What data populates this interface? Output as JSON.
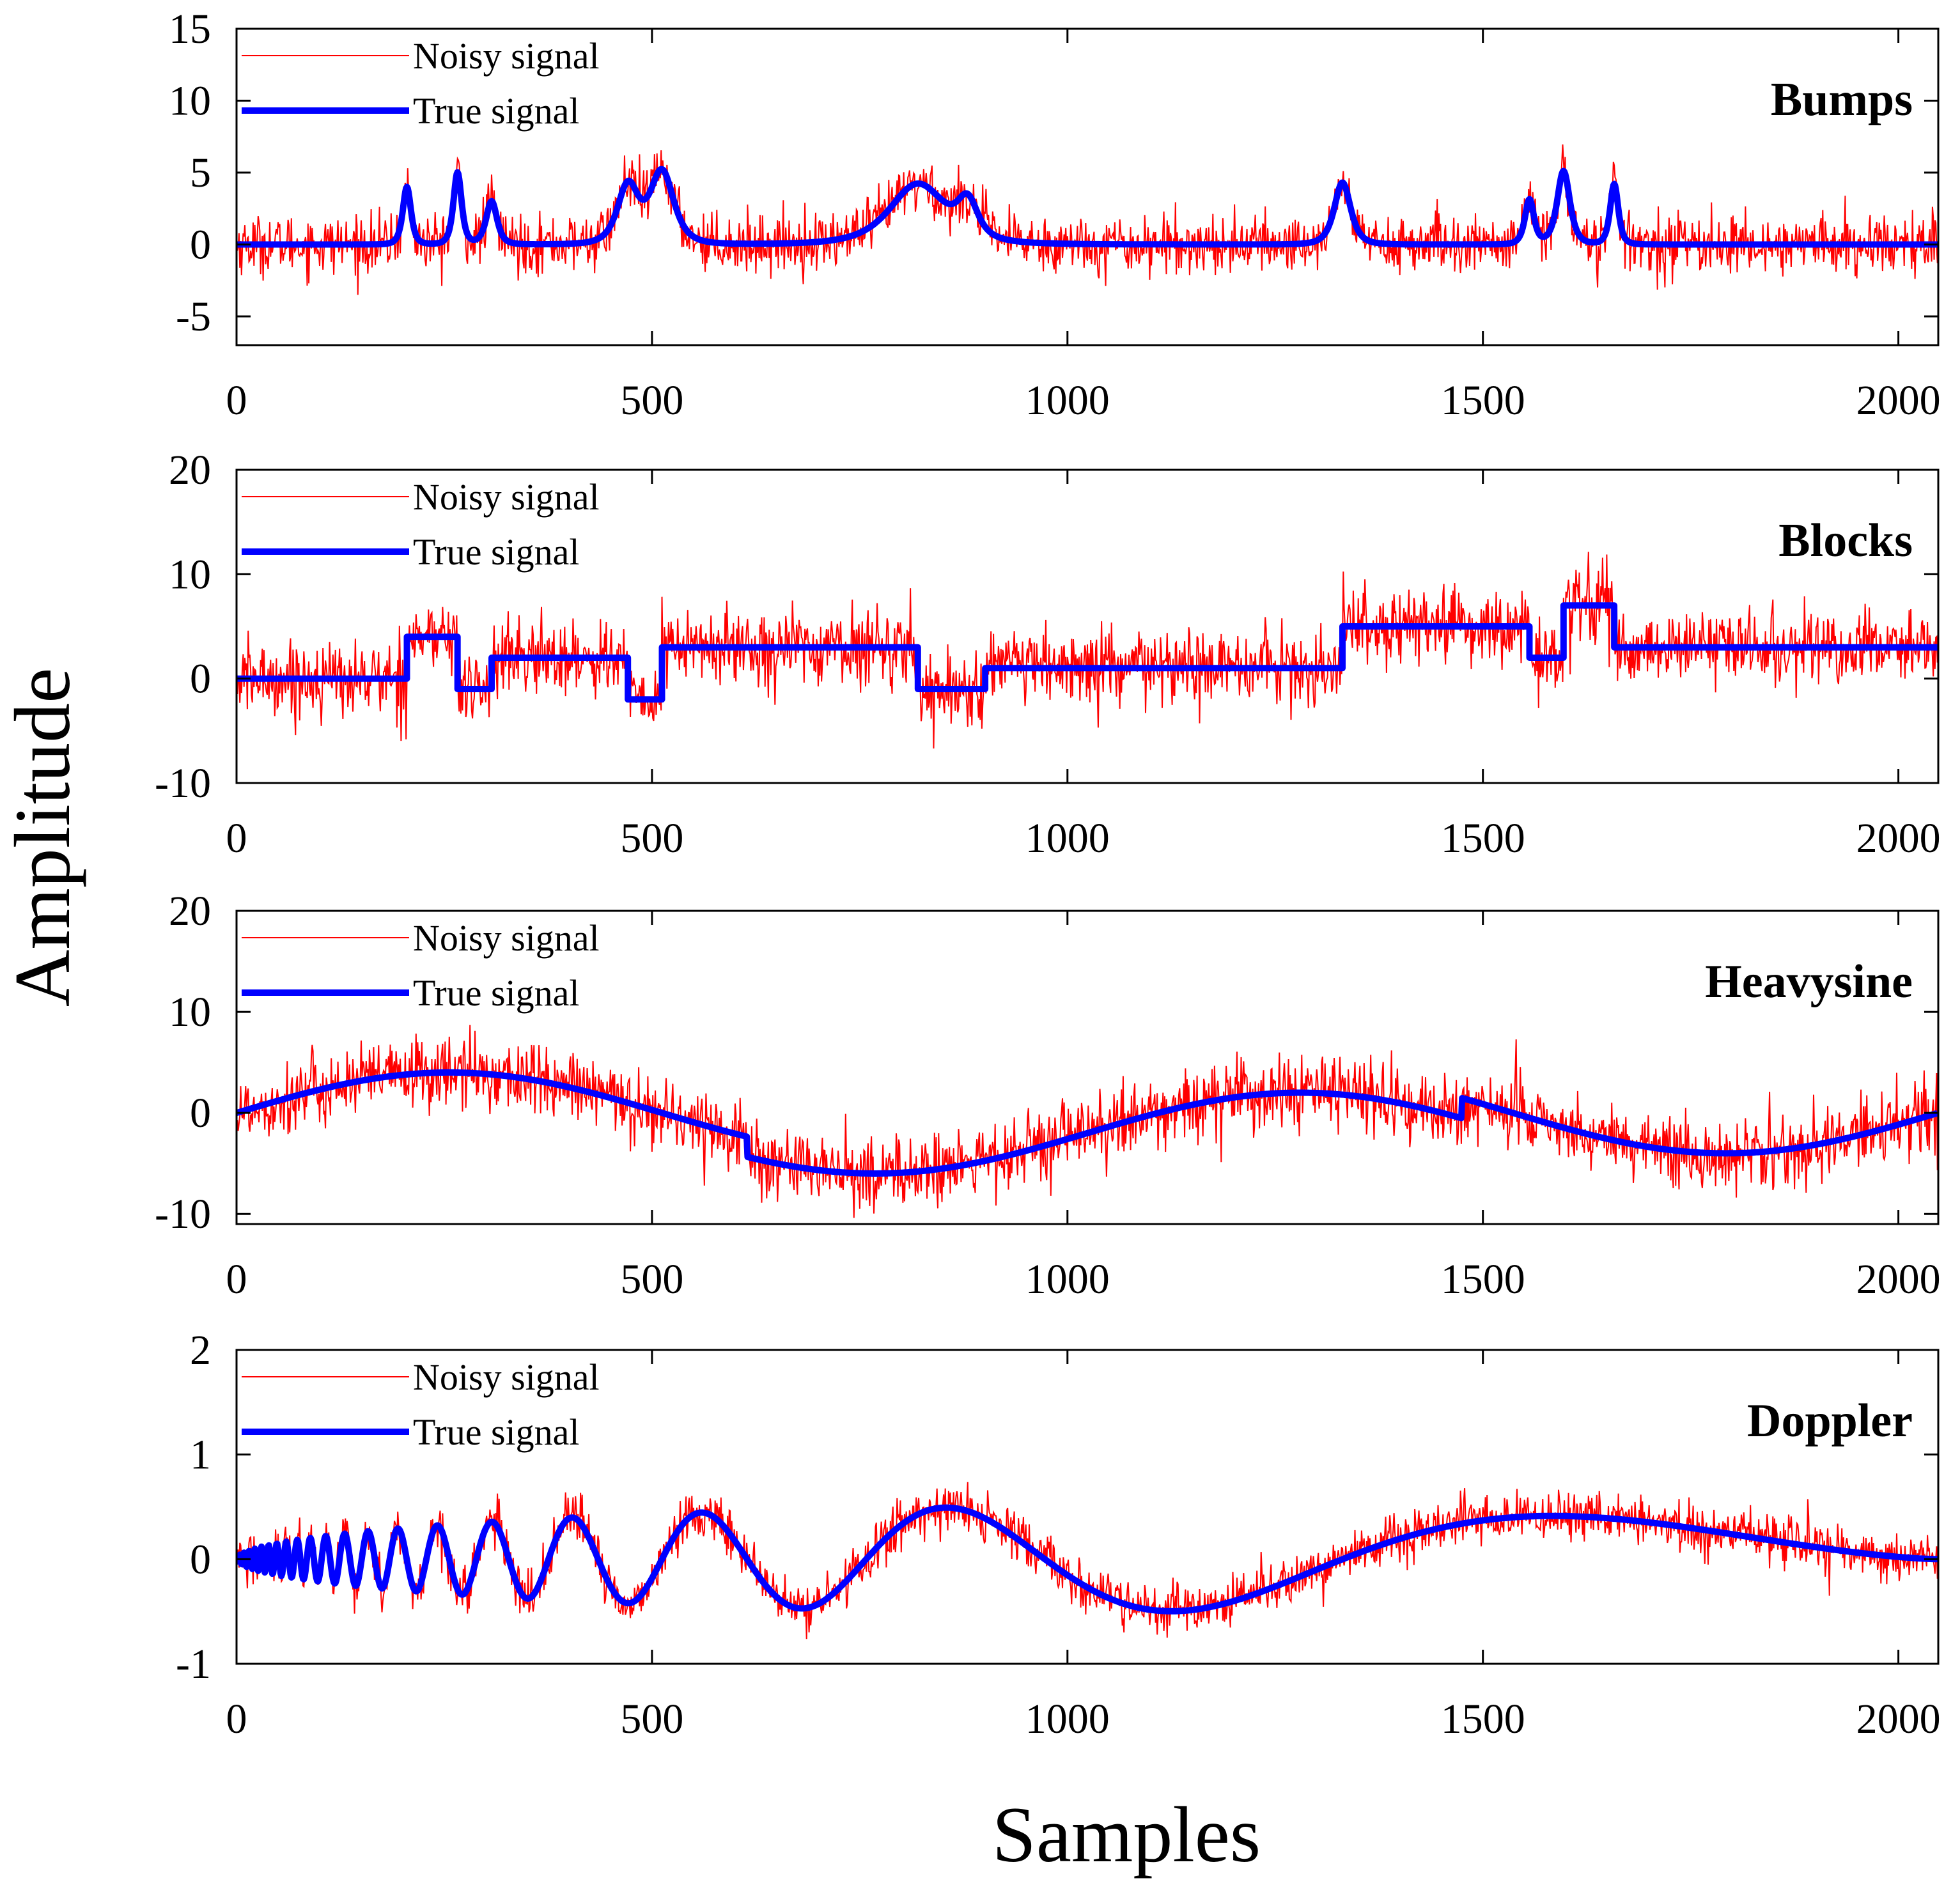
{
  "figure": {
    "ylabel": "Amplitude",
    "xlabel": "Samples"
  },
  "chart_data": [
    {
      "type": "line",
      "title": "Bumps",
      "xlim": [
        0,
        2048
      ],
      "ylim": [
        -7,
        15
      ],
      "xticks": [
        0,
        500,
        1000,
        1500,
        2000
      ],
      "xtick_labels": [
        "0",
        "500",
        "1000",
        "1500",
        "2000"
      ],
      "yticks": [
        15,
        10,
        5,
        0,
        -5
      ],
      "ytick_labels": [
        "15",
        "10",
        "5",
        "0",
        "-5"
      ],
      "legend": [
        "Noisy signal",
        "True signal"
      ],
      "legend_position": "top-left",
      "noise_std": 1.0,
      "series": [
        {
          "name": "Noisy signal",
          "color": "#ff0000",
          "values": "true signal plus Gaussian noise (sd 1.0), 2048 samples"
        },
        {
          "name": "True signal",
          "color": "#0000ff",
          "bumps": [
            {
              "center": 205,
              "height": 4.0,
              "width": 9
            },
            {
              "center": 266,
              "height": 5.0,
              "width": 9
            },
            {
              "center": 307,
              "height": 3.0,
              "width": 12
            },
            {
              "center": 471,
              "height": 4.0,
              "width": 23
            },
            {
              "center": 512,
              "height": 5.0,
              "width": 26
            },
            {
              "center": 820,
              "height": 4.2,
              "width": 62
            },
            {
              "center": 880,
              "height": 2.4,
              "width": 22
            },
            {
              "center": 1331,
              "height": 4.3,
              "width": 18
            },
            {
              "center": 1556,
              "height": 3.1,
              "width": 10
            },
            {
              "center": 1597,
              "height": 5.1,
              "width": 14
            },
            {
              "center": 1658,
              "height": 4.2,
              "width": 9
            }
          ]
        }
      ]
    },
    {
      "type": "line",
      "title": "Blocks",
      "xlim": [
        0,
        2048
      ],
      "ylim": [
        -10,
        20
      ],
      "xticks": [
        0,
        500,
        1000,
        1500,
        2000
      ],
      "xtick_labels": [
        "0",
        "500",
        "1000",
        "1500",
        "2000"
      ],
      "yticks": [
        20,
        10,
        0,
        -10
      ],
      "ytick_labels": [
        "20",
        "10",
        "0",
        "-10"
      ],
      "legend": [
        "Noisy signal",
        "True signal"
      ],
      "legend_position": "top-left",
      "noise_std": 1.8,
      "series": [
        {
          "name": "Noisy signal",
          "color": "#ff0000",
          "values": "true signal plus Gaussian noise (sd 1.8), 2048 samples"
        },
        {
          "name": "True signal",
          "color": "#0000ff",
          "steps_x": [
            0,
            205,
            266,
            307,
            471,
            512,
            820,
            901,
            1331,
            1556,
            1597,
            1658,
            2048
          ],
          "steps_y": [
            0,
            4,
            -1,
            2,
            -2,
            3,
            -1,
            1,
            5,
            2,
            7,
            3
          ]
        }
      ]
    },
    {
      "type": "line",
      "title": "Heavysine",
      "xlim": [
        0,
        2048
      ],
      "ylim": [
        -11,
        20
      ],
      "xticks": [
        0,
        500,
        1000,
        1500,
        2000
      ],
      "xtick_labels": [
        "0",
        "500",
        "1000",
        "1500",
        "2000"
      ],
      "yticks": [
        20,
        10,
        0,
        -10
      ],
      "ytick_labels": [
        "20",
        "10",
        "0",
        "-10"
      ],
      "legend": [
        "Noisy signal",
        "True signal"
      ],
      "legend_position": "top-left",
      "noise_std": 1.8,
      "series": [
        {
          "name": "Noisy signal",
          "color": "#ff0000",
          "values": "true signal plus Gaussian noise (sd 1.8), 2048 samples"
        },
        {
          "name": "True signal",
          "color": "#0000ff",
          "formula": "4*sin(4*pi*t) - sign(t-0.3) - sign(0.72-t), t = n/2048"
        }
      ]
    },
    {
      "type": "line",
      "title": "Doppler",
      "xlim": [
        0,
        2048
      ],
      "ylim": [
        -1,
        2
      ],
      "xticks": [
        0,
        500,
        1000,
        1500,
        2000
      ],
      "xtick_labels": [
        "0",
        "500",
        "1000",
        "1500",
        "2000"
      ],
      "yticks": [
        2,
        1,
        0,
        -1
      ],
      "ytick_labels": [
        "2",
        "1",
        "0",
        "-1"
      ],
      "legend": [
        "Noisy signal",
        "True signal"
      ],
      "legend_position": "top-left",
      "noise_std": 0.12,
      "series": [
        {
          "name": "Noisy signal",
          "color": "#ff0000",
          "values": "true signal plus Gaussian noise (sd 0.12), 2048 samples"
        },
        {
          "name": "True signal",
          "color": "#0000ff",
          "formula": "sqrt(t*(1-t)) * sin(2.1*pi/(t+0.05)), t = n/2048"
        }
      ]
    }
  ]
}
